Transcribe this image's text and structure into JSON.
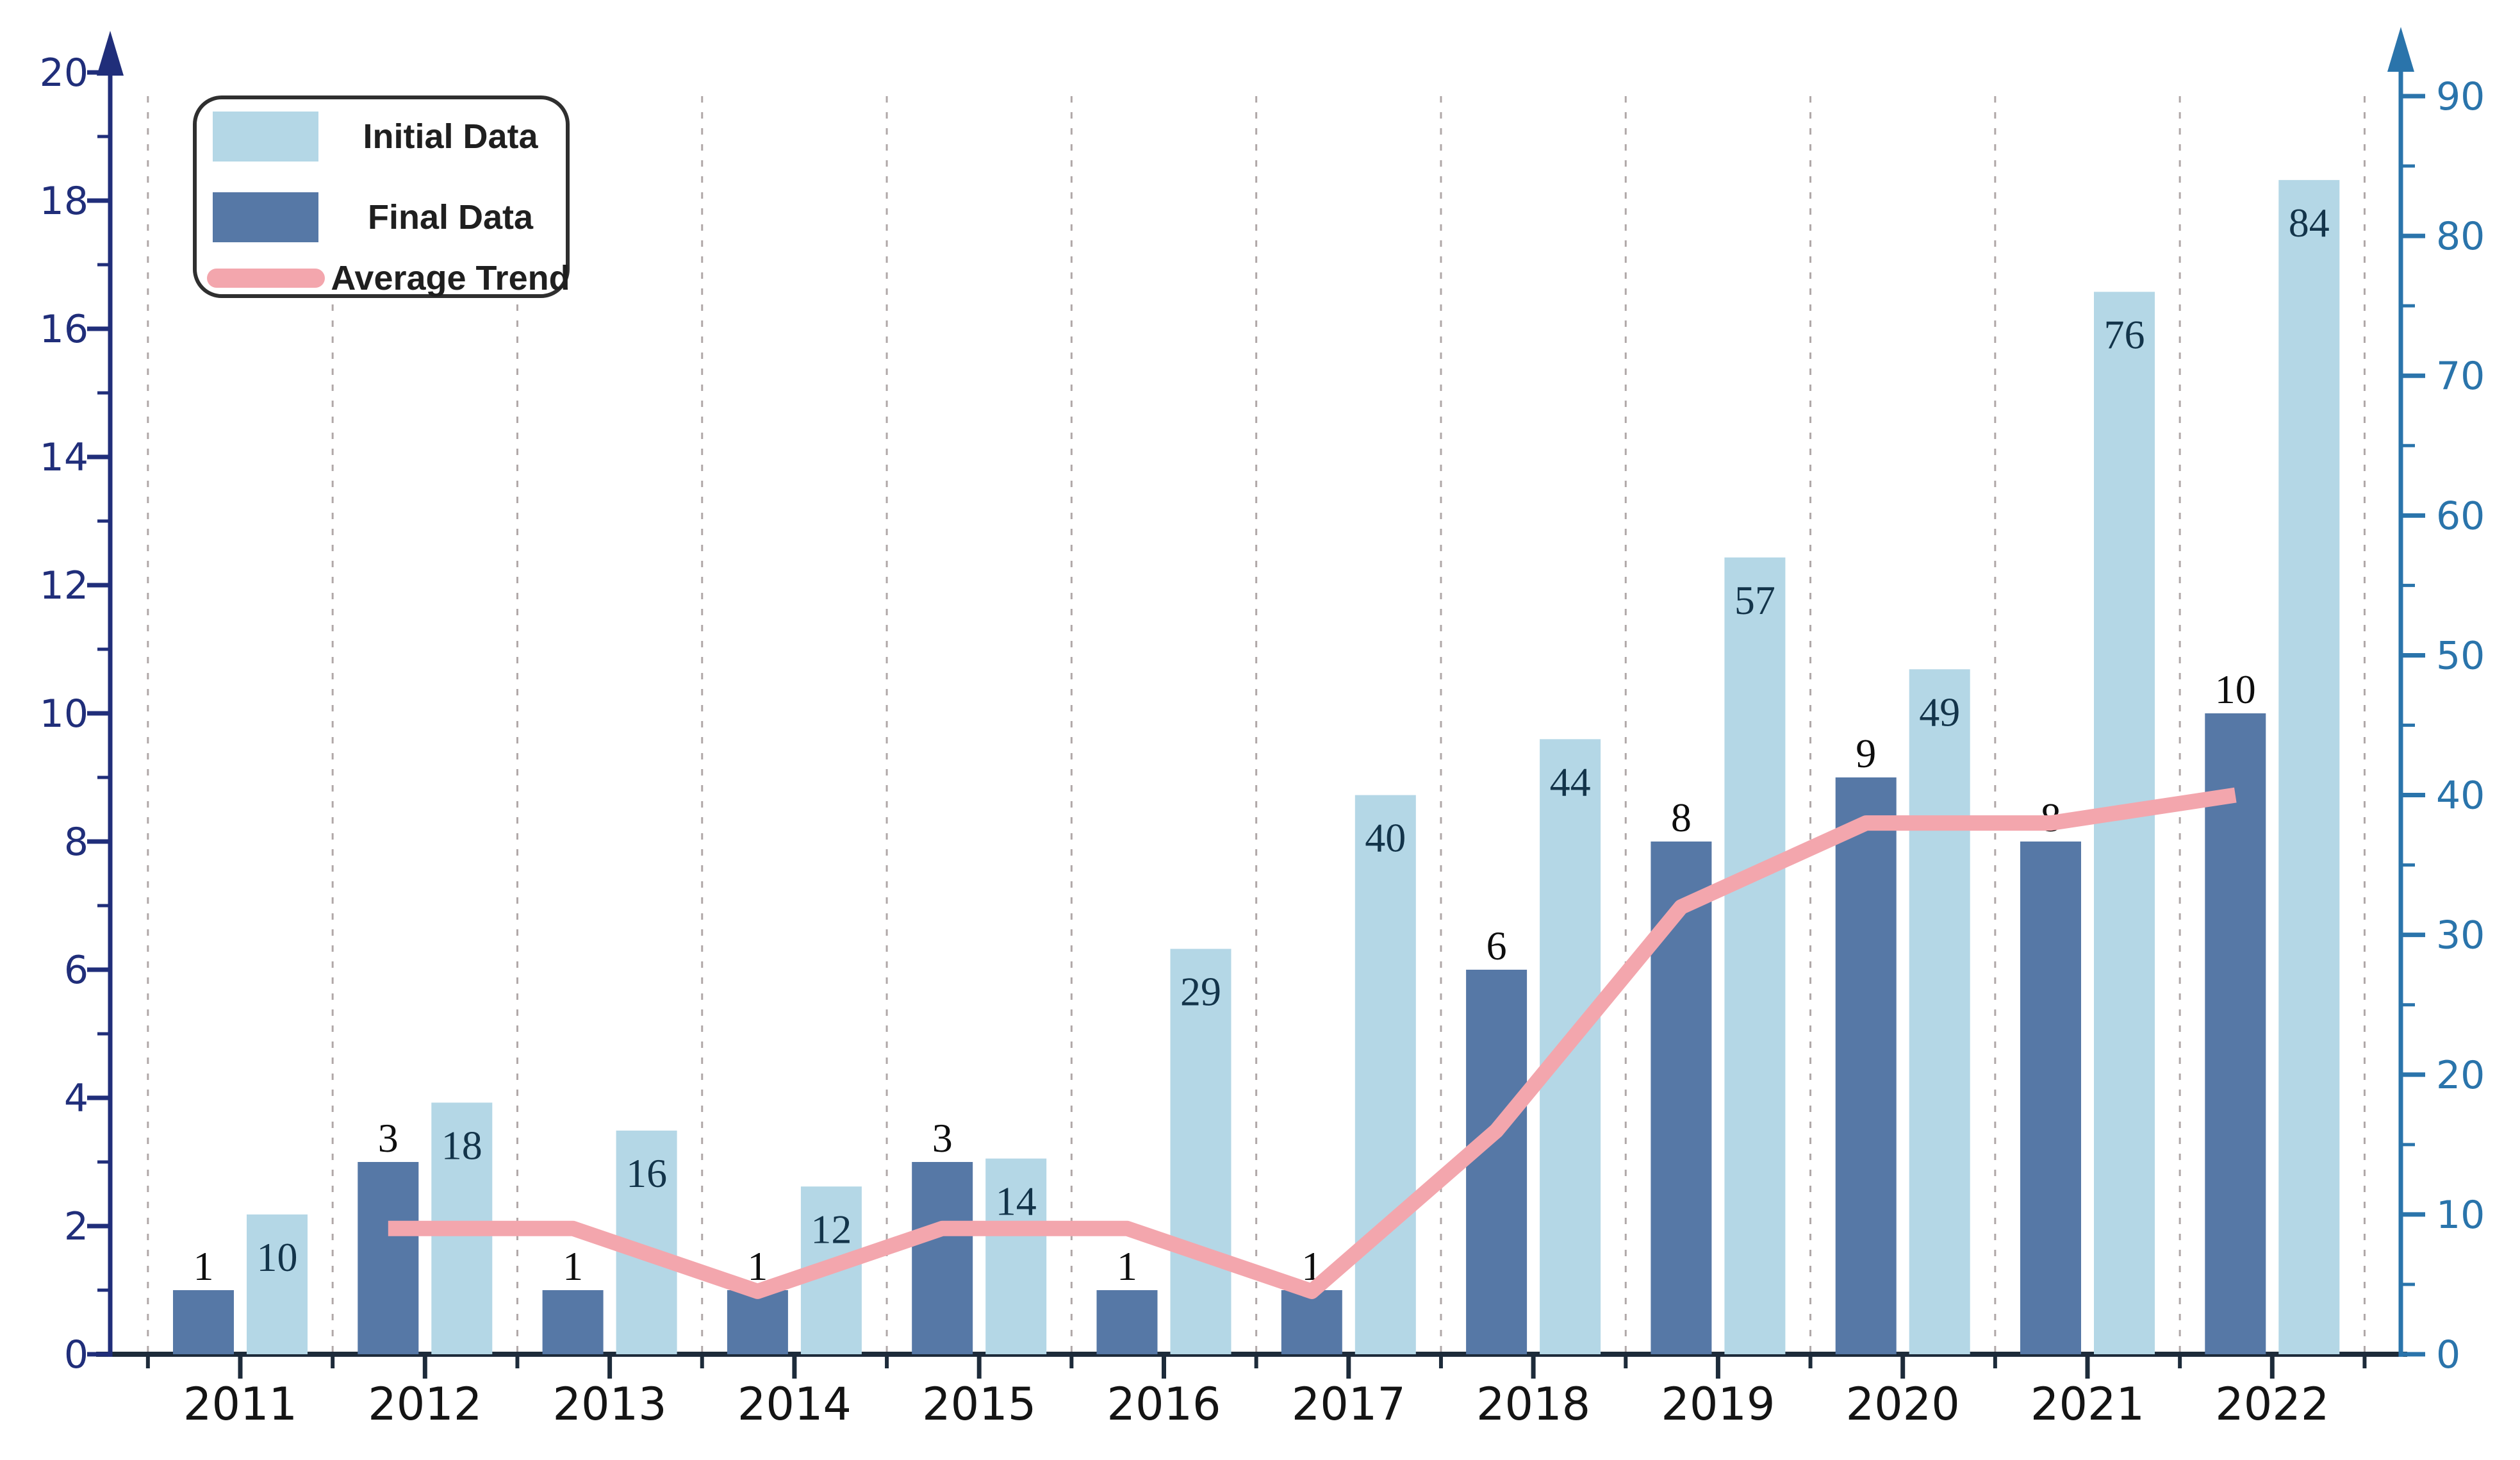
{
  "chart_data": {
    "type": "bar",
    "subtype": "grouped-bars-with-trend-line",
    "title": "",
    "categories": [
      "2011",
      "2012",
      "2013",
      "2014",
      "2015",
      "2016",
      "2017",
      "2018",
      "2019",
      "2020",
      "2021",
      "2022"
    ],
    "series": [
      {
        "name": "Initial Data",
        "axis": "right",
        "values": [
          10,
          18,
          16,
          12,
          14,
          29,
          40,
          44,
          57,
          49,
          76,
          84
        ]
      },
      {
        "name": "Final Data",
        "axis": "left",
        "values": [
          1,
          3,
          1,
          1,
          3,
          1,
          1,
          6,
          8,
          9,
          8,
          10
        ]
      }
    ],
    "trend": {
      "name": "Average Trend",
      "axis": "right",
      "categories": [
        "2012",
        "2013",
        "2014",
        "2015",
        "2016",
        "2017",
        "2018",
        "2019",
        "2020",
        "2021",
        "2022"
      ],
      "values": [
        9,
        9,
        4.5,
        9,
        9,
        4.5,
        16,
        32,
        38,
        38,
        40
      ]
    },
    "left_axis": {
      "min": 0,
      "max": 20,
      "major_step": 2,
      "minor_step": 1,
      "tick_labels": [
        "0",
        "2",
        "4",
        "6",
        "8",
        "10",
        "12",
        "14",
        "16",
        "18",
        "20"
      ]
    },
    "right_axis": {
      "min": 0,
      "max": 90,
      "major_step": 10,
      "minor_step": 5,
      "tick_labels": [
        "0",
        "10",
        "20",
        "30",
        "40",
        "50",
        "60",
        "70",
        "80",
        "90"
      ]
    },
    "grid": "vertical-dashed-between-categories",
    "legend_position": "top-left",
    "bar_label_style": {
      "final": "above-bar",
      "initial": "inside-bar-top"
    }
  },
  "legend": {
    "items": [
      {
        "label": "Initial Data",
        "swatch": "light-bar-swatch"
      },
      {
        "label": "Final Data",
        "swatch": "dark-bar-swatch"
      },
      {
        "label": "Average Trend",
        "swatch": "pink-line-swatch"
      }
    ]
  },
  "colors": {
    "initial_bar": "#b4d7e6",
    "final_bar": "#5678a6",
    "trend_line": "#f3a6ad",
    "left_axis": "#202e7a",
    "right_axis": "#2a74ab",
    "x_axis": "#1d2b3a",
    "x_labels": "#141414",
    "bar_labels": "#0d0d0d",
    "gridline": "#b0a8a8",
    "legend_border": "#2f2f2f",
    "legend_text": "#1f1f1f",
    "background": "#ffffff"
  }
}
